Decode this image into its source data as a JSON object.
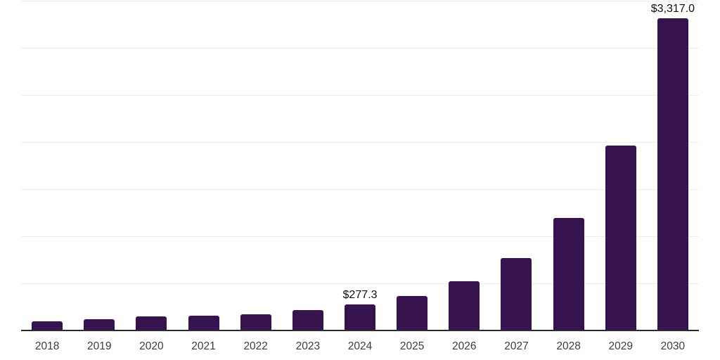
{
  "chart": {
    "background_color": "#ffffff",
    "bar_color": "#34134F",
    "gridline_color": "#eeeeee",
    "axis_line_color": "#2b2b2b",
    "tick_label_color": "#3d3d3d",
    "data_label_color": "#0f0f0f"
  },
  "chart_data": {
    "type": "bar",
    "title": "",
    "xlabel": "",
    "ylabel": "",
    "categories": [
      "2018",
      "2019",
      "2020",
      "2021",
      "2022",
      "2023",
      "2024",
      "2025",
      "2026",
      "2027",
      "2028",
      "2029",
      "2030"
    ],
    "values": [
      94,
      122,
      146,
      154,
      172,
      214,
      277.3,
      368,
      525,
      769,
      1192,
      1964,
      3317
    ],
    "data_labels": [
      "",
      "",
      "",
      "",
      "",
      "",
      "$277.3",
      "",
      "",
      "",
      "",
      "",
      "$3,317.0"
    ],
    "ylim": [
      0,
      3500
    ],
    "gridline_step": 500,
    "grid": true,
    "y_axis_labels_shown": false,
    "legend_position": "none"
  }
}
